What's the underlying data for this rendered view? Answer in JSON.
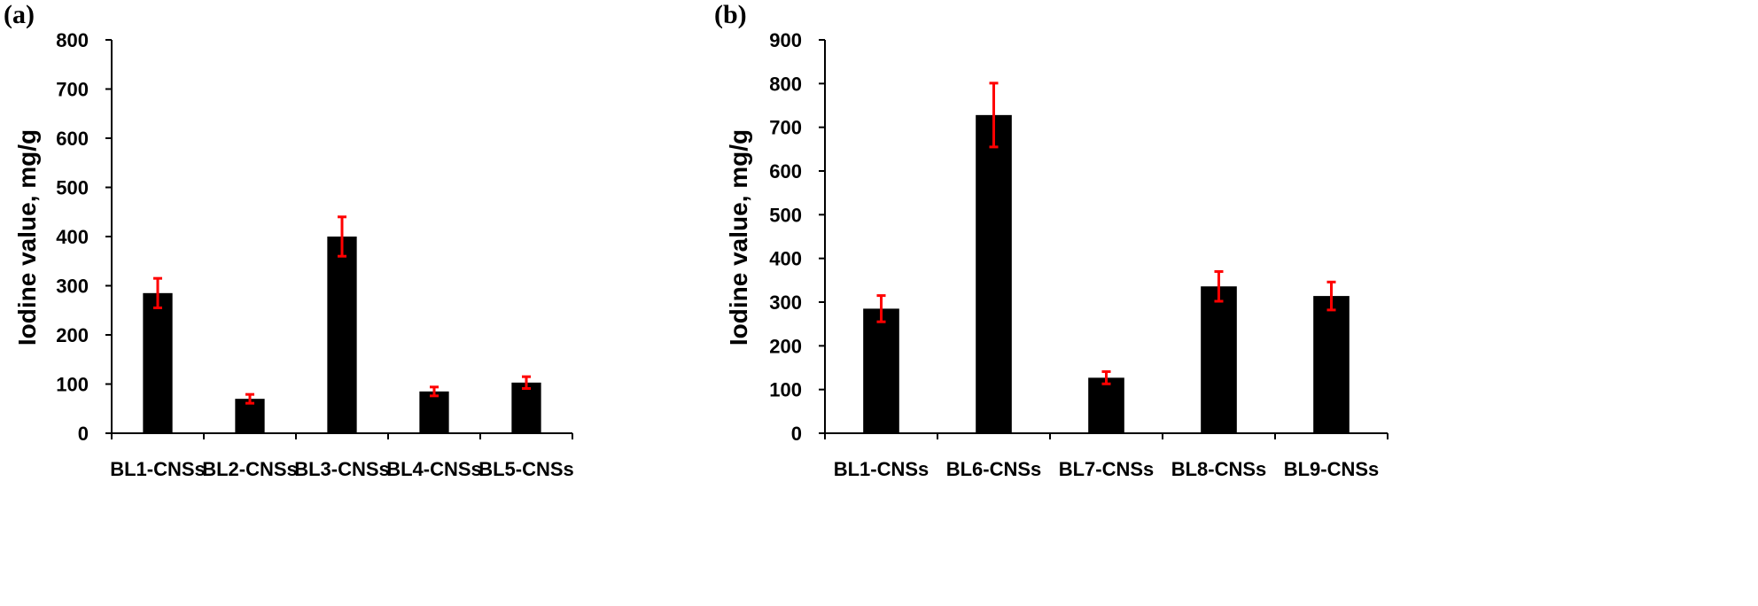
{
  "chart_data": [
    {
      "type": "bar",
      "panel_label": "(a)",
      "title": "",
      "xlabel": "",
      "ylabel": "Iodine value, mg/g",
      "ylim": [
        0,
        800
      ],
      "ytick_step": 100,
      "yticks": [
        "0",
        "100",
        "200",
        "300",
        "400",
        "500",
        "600",
        "700",
        "800"
      ],
      "categories": [
        "BL1-CNSs",
        "BL2-CNSs",
        "BL3-CNSs",
        "BL4-CNSs",
        "BL5-CNSs"
      ],
      "values": [
        285,
        70,
        400,
        85,
        103
      ],
      "errors": [
        30,
        9,
        40,
        9,
        12
      ],
      "grid": false,
      "legend": "none"
    },
    {
      "type": "bar",
      "panel_label": "(b)",
      "title": "",
      "xlabel": "",
      "ylabel": "Iodine value, mg/g",
      "ylim": [
        0,
        900
      ],
      "ytick_step": 100,
      "yticks": [
        "0",
        "100",
        "200",
        "300",
        "400",
        "500",
        "600",
        "700",
        "800",
        "900"
      ],
      "categories": [
        "BL1-CNSs",
        "BL6-CNSs",
        "BL7-CNSs",
        "BL8-CNSs",
        "BL9-CNSs"
      ],
      "values": [
        285,
        728,
        127,
        336,
        314
      ],
      "errors": [
        30,
        73,
        14,
        34,
        32
      ],
      "grid": false,
      "legend": "none"
    }
  ],
  "colors": {
    "bar": "#000000",
    "error_bar": "#ff0000",
    "axis": "#000000"
  }
}
